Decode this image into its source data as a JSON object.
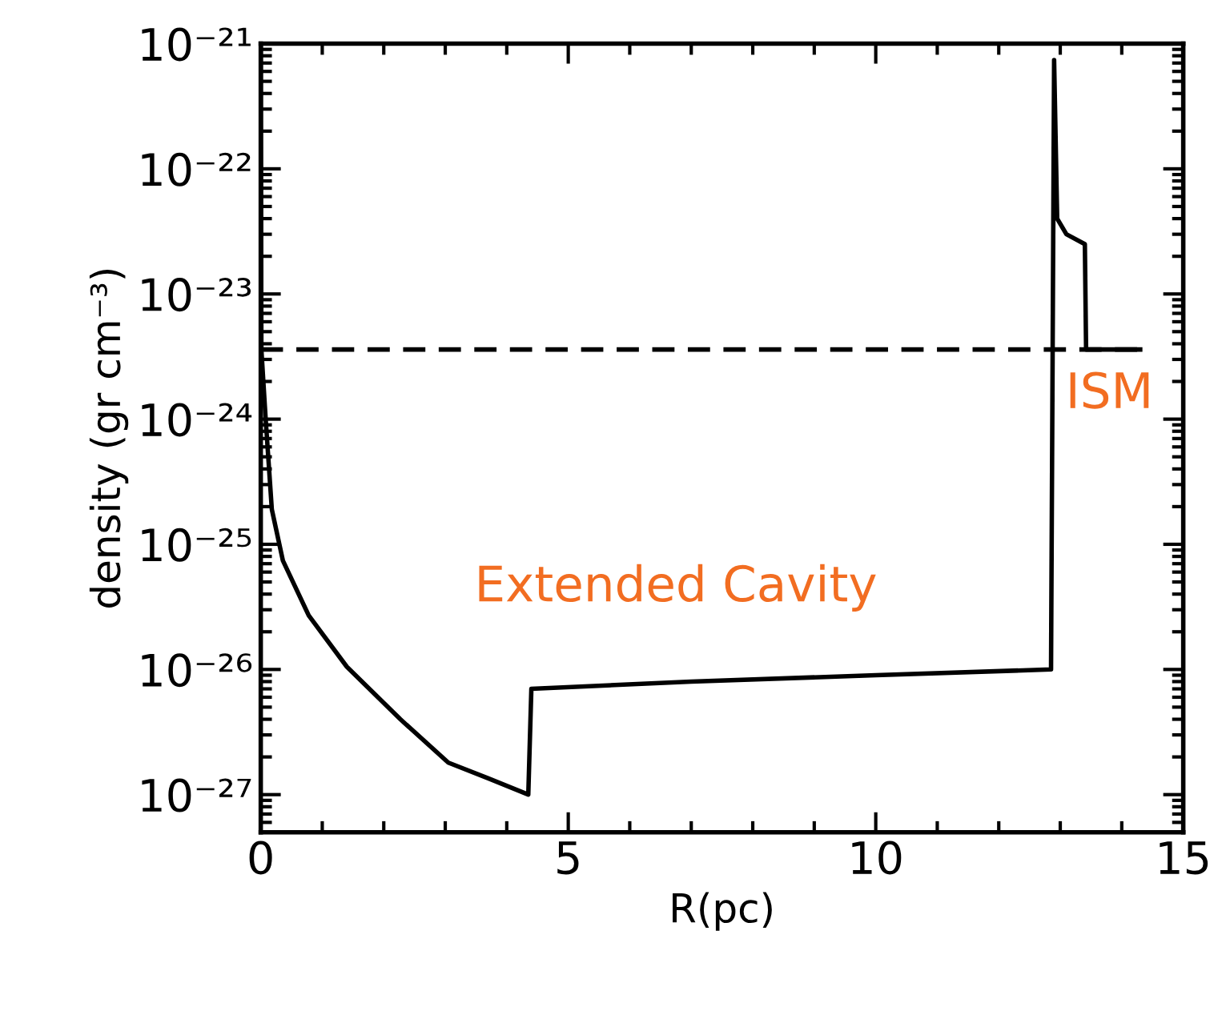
{
  "chart_data": {
    "type": "line",
    "xlabel": "R(pc)",
    "ylabel": "density (gr cm⁻³)",
    "series": [
      {
        "color": "#000000",
        "line_style": "solid",
        "x": [
          0.0,
          0.01,
          0.08,
          0.18,
          0.36,
          0.78,
          1.4,
          2.27,
          3.05,
          3.7,
          4.35,
          4.4,
          7.0,
          10.0,
          12.85,
          12.9,
          12.95,
          13.1,
          13.4,
          13.42,
          14.3
        ],
        "values": [
          1e-21,
          3.6e-24,
          1e-24,
          1.9e-25,
          7.4e-26,
          2.7e-26,
          1.05e-26,
          4e-27,
          1.8e-27,
          1.35e-27,
          1e-27,
          7e-27,
          8e-27,
          9e-27,
          1e-26,
          7.4e-22,
          4e-23,
          3e-23,
          2.5e-23,
          3.6e-24,
          3.6e-24
        ]
      },
      {
        "color": "#000000",
        "line_style": "dashed",
        "x": [
          0.0,
          14.3
        ],
        "values": [
          3.6e-24,
          3.6e-24
        ]
      }
    ],
    "log": "y",
    "xlim": [
      0,
      15
    ],
    "xticks": [
      0,
      5,
      10,
      15
    ],
    "ylim": [
      5e-28,
      1e-21
    ],
    "yticks": [
      {
        "value": 1e-27,
        "label": "10⁻²⁷"
      },
      {
        "value": 1e-26,
        "label": "10⁻²⁶"
      },
      {
        "value": 1e-25,
        "label": "10⁻²⁵"
      },
      {
        "value": 1e-24,
        "label": "10⁻²⁴"
      },
      {
        "value": 1e-23,
        "label": "10⁻²³"
      },
      {
        "value": 1e-22,
        "label": "10⁻²²"
      },
      {
        "value": 1e-21,
        "label": "10⁻²¹"
      }
    ],
    "annotations": [
      "Extended Cavity",
      "ISM"
    ],
    "grid": false,
    "legend": false
  }
}
